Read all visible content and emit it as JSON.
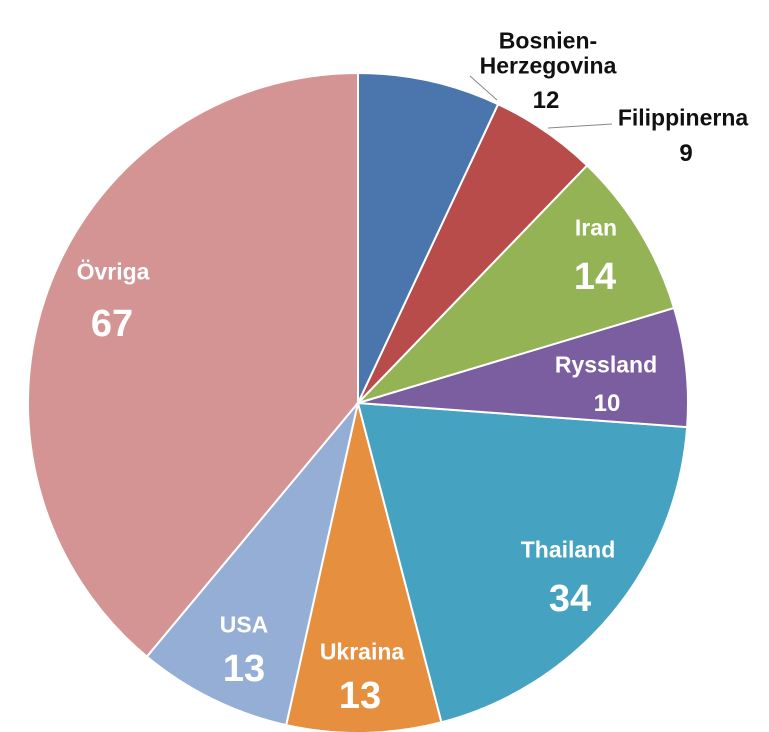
{
  "chart_data": {
    "type": "pie",
    "categories": [
      "Bosnien-Herzegovina",
      "Filippinerna",
      "Iran",
      "Ryssland",
      "Thailand",
      "Ukraina",
      "USA",
      "Övriga"
    ],
    "values": [
      12,
      9,
      14,
      10,
      34,
      13,
      13,
      67
    ],
    "colors": [
      "#4a76ad",
      "#b84c4a",
      "#93b354",
      "#7b5ea0",
      "#45a3c1",
      "#e58f3f",
      "#94aed6",
      "#d49494"
    ]
  }
}
